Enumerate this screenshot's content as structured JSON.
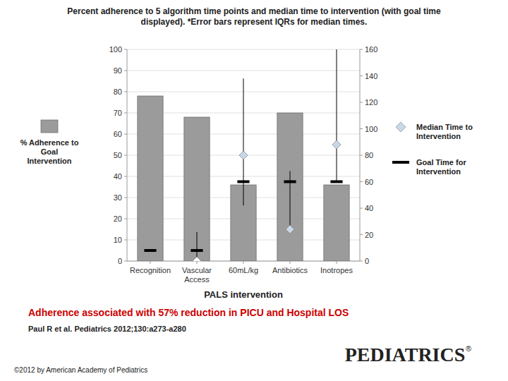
{
  "chart_data": {
    "type": "bar",
    "title": "Percent adherence to 5 algorithm time points and median time to intervention (with goal time\ndisplayed). *Error bars represent IQRs for median times.",
    "categories": [
      "Recognition",
      "Vascular\nAccess",
      "60mL/kg",
      "Antibiotics",
      "Inotropes"
    ],
    "xlabel": "PALS intervention",
    "ylim": [
      0,
      100
    ],
    "yticks": [
      0,
      10,
      20,
      30,
      40,
      50,
      60,
      70,
      80,
      90,
      100
    ],
    "y2lim": [
      0,
      160
    ],
    "y2ticks": [
      0,
      20,
      40,
      60,
      80,
      100,
      120,
      140,
      160
    ],
    "grid": true,
    "legend": "outside",
    "series": [
      {
        "name": "% Adherence to\nGoal\nIntervention",
        "type": "bar",
        "color": "#9b9b9b",
        "values": [
          78,
          68,
          36,
          70,
          36
        ]
      },
      {
        "name": "Median Time to\nIntervention",
        "type": "scatter",
        "marker": "diamond",
        "axis": "y2",
        "color": "#c8d8e8",
        "colors": [
          null,
          "#ffffff",
          "#c8d8e8",
          "#c8d8e8",
          "#c8d8e8"
        ],
        "values": [
          null,
          0,
          80,
          24,
          88
        ],
        "iqr_low": [
          null,
          0,
          42,
          24,
          60
        ],
        "iqr_high": [
          null,
          22,
          138,
          68,
          160
        ]
      },
      {
        "name": "Goal Time for\nIntervention",
        "type": "scatter",
        "marker": "dash",
        "axis": "y2",
        "color": "#000000",
        "values": [
          8,
          8,
          60,
          60,
          60
        ]
      }
    ],
    "annotations": [
      {
        "text": "Adherence associated with 57% reduction in PICU and Hospital LOS",
        "color": "#cc0000"
      },
      {
        "text": "Paul R et al. Pediatrics 2012;130:a273-a280"
      },
      {
        "text": "©2012 by American Academy of Pediatrics"
      },
      {
        "text": "PEDIATRICS"
      },
      {
        "text": "®"
      }
    ]
  }
}
